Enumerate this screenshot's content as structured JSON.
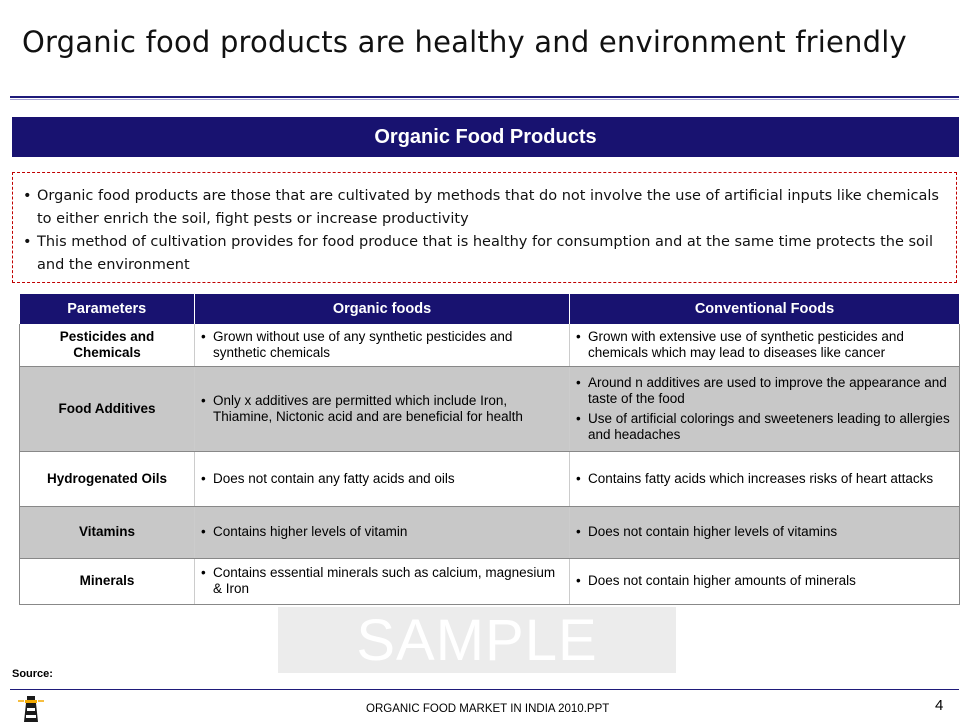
{
  "title": "Organic food products are healthy and environment friendly",
  "banner": "Organic Food Products",
  "intro": [
    "Organic food products are those that are cultivated by methods that do not involve the use of artificial inputs like chemicals to either enrich the soil, fight pests or increase productivity",
    "This method of cultivation provides for food produce that is healthy for consumption and at the same time protects the soil and the environment"
  ],
  "table": {
    "headers": [
      "Parameters",
      "Organic foods",
      "Conventional Foods"
    ],
    "rows": [
      {
        "param": "Pesticides and Chemicals",
        "organic": [
          "Grown without use of any synthetic pesticides and synthetic chemicals"
        ],
        "conventional": [
          "Grown with extensive use of synthetic pesticides and chemicals which may lead to diseases like cancer"
        ]
      },
      {
        "param": "Food Additives",
        "organic": [
          "Only x additives are permitted which include Iron, Thiamine, Nictonic acid and are beneficial for health"
        ],
        "conventional": [
          "Around n additives are used to improve the appearance and taste of the food",
          "Use of artificial colorings and sweeteners leading to allergies and headaches"
        ]
      },
      {
        "param": "Hydrogenated Oils",
        "organic": [
          "Does not contain any fatty acids and oils"
        ],
        "conventional": [
          "Contains fatty acids which increases risks of heart attacks"
        ]
      },
      {
        "param": "Vitamins",
        "organic": [
          "Contains higher levels of vitamin"
        ],
        "conventional": [
          "Does not contain higher levels of vitamins"
        ]
      },
      {
        "param": "Minerals",
        "organic": [
          "Contains essential minerals such as calcium, magnesium & Iron"
        ],
        "conventional": [
          "Does not contain higher amounts of minerals"
        ]
      }
    ]
  },
  "watermark": "SAMPLE",
  "source_label": "Source:",
  "footer_text": "ORGANIC FOOD MARKET IN INDIA 2010.PPT",
  "page_number": "4",
  "colors": {
    "header_bg": "#181270",
    "alt_row": "#c8c8c8",
    "intro_border": "#c00000"
  }
}
